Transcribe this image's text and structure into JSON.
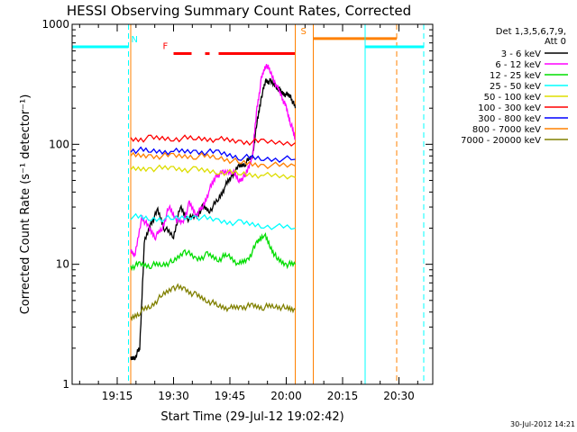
{
  "chart_data": {
    "type": "line",
    "title": "HESSI Observing Summary Count Rates, Corrected",
    "xlabel": "Start Time (29-Jul-12 19:02:42)",
    "ylabel": "Corrected Count Rate (s⁻¹ detector⁻¹)",
    "yscale": "log",
    "ylim": [
      1,
      1000
    ],
    "xlim_minutes": [
      19.05,
      20.65
    ],
    "x_ticks": [
      "19:15",
      "19:30",
      "19:45",
      "20:00",
      "20:15",
      "20:30"
    ],
    "y_ticks": [
      "1",
      "10",
      "100",
      "1000"
    ],
    "legend_title": [
      "Det 1,3,5,6,7,9,",
      "Att 0"
    ],
    "legend_position": "right",
    "footer": "30-Jul-2012 14:21",
    "series": [
      {
        "name": "3 - 6 keV",
        "color": "#000000",
        "points": [
          [
            19.31,
            1.6
          ],
          [
            19.33,
            1.7
          ],
          [
            19.35,
            2
          ],
          [
            19.37,
            15
          ],
          [
            19.4,
            22
          ],
          [
            19.43,
            28
          ],
          [
            19.46,
            20
          ],
          [
            19.5,
            17
          ],
          [
            19.53,
            30
          ],
          [
            19.56,
            24
          ],
          [
            19.6,
            25
          ],
          [
            19.63,
            30
          ],
          [
            19.66,
            28
          ],
          [
            19.7,
            35
          ],
          [
            19.73,
            45
          ],
          [
            19.76,
            55
          ],
          [
            19.79,
            65
          ],
          [
            19.82,
            70
          ],
          [
            19.85,
            80
          ],
          [
            19.87,
            150
          ],
          [
            19.89,
            250
          ],
          [
            19.91,
            340
          ],
          [
            19.93,
            330
          ],
          [
            19.96,
            300
          ],
          [
            19.98,
            270
          ],
          [
            20.0,
            260
          ],
          [
            20.02,
            250
          ],
          [
            20.04,
            200
          ]
        ]
      },
      {
        "name": "6 - 12 keV",
        "color": "#ff00ff",
        "points": [
          [
            19.31,
            13
          ],
          [
            19.33,
            12
          ],
          [
            19.36,
            25
          ],
          [
            19.39,
            20
          ],
          [
            19.42,
            17
          ],
          [
            19.45,
            20
          ],
          [
            19.48,
            30
          ],
          [
            19.51,
            24
          ],
          [
            19.54,
            22
          ],
          [
            19.57,
            32
          ],
          [
            19.6,
            26
          ],
          [
            19.63,
            30
          ],
          [
            19.66,
            42
          ],
          [
            19.69,
            55
          ],
          [
            19.72,
            58
          ],
          [
            19.76,
            60
          ],
          [
            19.79,
            50
          ],
          [
            19.82,
            55
          ],
          [
            19.85,
            80
          ],
          [
            19.87,
            200
          ],
          [
            19.89,
            350
          ],
          [
            19.91,
            470
          ],
          [
            19.93,
            400
          ],
          [
            19.96,
            300
          ],
          [
            19.98,
            250
          ],
          [
            20.0,
            200
          ],
          [
            20.02,
            150
          ],
          [
            20.04,
            110
          ]
        ]
      },
      {
        "name": "12 - 25 keV",
        "color": "#00dd00",
        "points": [
          [
            19.31,
            9.5
          ],
          [
            19.35,
            10
          ],
          [
            19.4,
            9.8
          ],
          [
            19.45,
            10
          ],
          [
            19.5,
            10.5
          ],
          [
            19.55,
            13
          ],
          [
            19.6,
            11
          ],
          [
            19.65,
            12
          ],
          [
            19.7,
            11
          ],
          [
            19.74,
            12
          ],
          [
            19.79,
            10
          ],
          [
            19.83,
            11
          ],
          [
            19.87,
            15
          ],
          [
            19.9,
            18
          ],
          [
            19.93,
            14
          ],
          [
            19.96,
            11
          ],
          [
            20.0,
            10
          ],
          [
            20.04,
            10
          ]
        ]
      },
      {
        "name": "25 - 50 keV",
        "color": "#00ffff",
        "points": [
          [
            19.31,
            25
          ],
          [
            19.4,
            24
          ],
          [
            19.5,
            24
          ],
          [
            19.6,
            25
          ],
          [
            19.7,
            23
          ],
          [
            19.8,
            22
          ],
          [
            19.9,
            21
          ],
          [
            20.04,
            20
          ]
        ]
      },
      {
        "name": "50 - 100 keV",
        "color": "#dddd00",
        "points": [
          [
            19.31,
            62
          ],
          [
            19.4,
            63
          ],
          [
            19.5,
            63
          ],
          [
            19.6,
            61
          ],
          [
            19.7,
            59
          ],
          [
            19.8,
            57
          ],
          [
            19.9,
            55
          ],
          [
            20.04,
            53
          ]
        ]
      },
      {
        "name": "100 - 300 keV",
        "color": "#ff0000",
        "points": [
          [
            19.31,
            110
          ],
          [
            19.4,
            112
          ],
          [
            19.5,
            112
          ],
          [
            19.6,
            112
          ],
          [
            19.7,
            110
          ],
          [
            19.8,
            105
          ],
          [
            19.9,
            105
          ],
          [
            20.04,
            103
          ]
        ]
      },
      {
        "name": "300 - 800 keV",
        "color": "#0000ff",
        "points": [
          [
            19.31,
            90
          ],
          [
            19.4,
            88
          ],
          [
            19.5,
            87
          ],
          [
            19.6,
            87
          ],
          [
            19.7,
            85
          ],
          [
            19.8,
            78
          ],
          [
            19.9,
            76
          ],
          [
            20.04,
            75
          ]
        ]
      },
      {
        "name": "800 - 7000 keV",
        "color": "#ff8000",
        "points": [
          [
            19.31,
            80
          ],
          [
            19.4,
            80
          ],
          [
            19.5,
            80
          ],
          [
            19.6,
            80
          ],
          [
            19.7,
            78
          ],
          [
            19.8,
            70
          ],
          [
            19.9,
            67
          ],
          [
            20.04,
            66
          ]
        ]
      },
      {
        "name": "7000 - 20000 keV",
        "color": "#808000",
        "points": [
          [
            19.31,
            3.5
          ],
          [
            19.35,
            4
          ],
          [
            19.4,
            4.5
          ],
          [
            19.45,
            5.5
          ],
          [
            19.5,
            6.5
          ],
          [
            19.55,
            6.2
          ],
          [
            19.6,
            5.5
          ],
          [
            19.65,
            5
          ],
          [
            19.7,
            4.5
          ],
          [
            19.75,
            4.3
          ],
          [
            19.8,
            4.4
          ],
          [
            19.85,
            4.5
          ],
          [
            19.9,
            4.4
          ],
          [
            19.95,
            4.5
          ],
          [
            20.0,
            4.3
          ],
          [
            20.04,
            4.2
          ]
        ]
      }
    ],
    "annotations": [
      {
        "label": "N",
        "color": "#00ffff",
        "start": 19.05,
        "end": 19.3,
        "level": 650,
        "dashed_lines": [
          19.3,
          20.61
        ]
      },
      {
        "label": "F",
        "color": "#ff0000",
        "segments": [
          [
            19.5,
            19.58
          ],
          [
            19.64,
            19.66
          ],
          [
            19.7,
            20.04
          ]
        ],
        "level": 570
      },
      {
        "label": "S",
        "color": "#ff8000",
        "start": 20.12,
        "end": 20.49,
        "level": 760,
        "dashed_lines": [
          20.49
        ]
      },
      {
        "label": "",
        "color": "#00ffff",
        "start": 20.35,
        "end": 20.61,
        "level": 650
      },
      {
        "label": "",
        "color": "#ff8000",
        "lines": [
          19.31,
          20.04,
          20.12
        ]
      },
      {
        "label": "",
        "color": "#00ffff",
        "lines": [
          19.05,
          20.35
        ]
      }
    ]
  }
}
